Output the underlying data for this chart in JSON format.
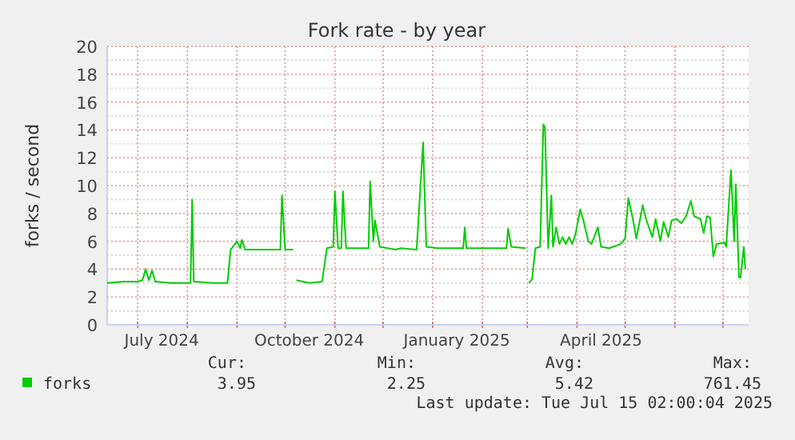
{
  "chart_data": {
    "type": "line",
    "title": "Fork rate - by year",
    "ylabel": "forks / second",
    "xlim": [
      "2024-06-12",
      "2025-07-17"
    ],
    "ylim": [
      0,
      20
    ],
    "yticks": [
      0,
      {
        "value": 1,
        "label": null
      },
      2,
      {
        "value": 3,
        "label": null
      },
      4,
      {
        "value": 5,
        "label": null
      },
      6,
      {
        "value": 7,
        "label": null
      },
      8,
      {
        "value": 9,
        "label": null
      },
      10,
      {
        "value": 11,
        "label": null
      },
      12,
      {
        "value": 13,
        "label": null
      },
      14,
      {
        "value": 15,
        "label": null
      },
      16,
      {
        "value": 17,
        "label": null
      },
      18,
      {
        "value": 19,
        "label": null
      },
      20
    ],
    "xticks": [
      {
        "value": "2024-07-01",
        "label": null
      },
      {
        "value": "2024-07-16",
        "label": "July 2024"
      },
      {
        "value": "2024-08-01",
        "label": null
      },
      {
        "value": "2024-09-01",
        "label": null
      },
      {
        "value": "2024-10-01",
        "label": null
      },
      {
        "value": "2024-10-16",
        "label": "October 2024"
      },
      {
        "value": "2024-11-01",
        "label": null
      },
      {
        "value": "2024-12-01",
        "label": null
      },
      {
        "value": "2025-01-01",
        "label": null
      },
      {
        "value": "2025-01-16",
        "label": "January 2025"
      },
      {
        "value": "2025-02-01",
        "label": null
      },
      {
        "value": "2025-03-01",
        "label": null
      },
      {
        "value": "2025-04-01",
        "label": null
      },
      {
        "value": "2025-04-16",
        "label": "April 2025"
      },
      {
        "value": "2025-05-01",
        "label": null
      },
      {
        "value": "2025-06-01",
        "label": null
      },
      {
        "value": "2025-07-01",
        "label": null
      }
    ],
    "grid": true,
    "legend": "bottom",
    "annotations": [
      "Cur:",
      "Min:",
      "Avg:",
      "Max:",
      "3.95",
      "2.25",
      "5.42",
      "761.45",
      "Last update: Tue Jul 15 02:00:04 2025"
    ],
    "series": [
      {
        "name": "forks",
        "color": "#00cc00",
        "x": [
          "2024-06-12",
          "2024-06-22",
          "2024-07-01",
          "2024-07-04",
          "2024-07-06",
          "2024-07-08",
          "2024-07-10",
          "2024-07-12",
          "2024-07-22",
          "2024-08-03",
          "2024-08-04",
          "2024-08-05",
          "2024-08-17",
          "2024-08-26",
          "2024-08-28",
          "2024-09-01",
          "2024-09-03",
          "2024-09-04",
          "2024-09-06",
          "2024-09-16",
          "2024-09-28",
          "2024-09-29",
          "2024-10-01",
          "2024-10-06",
          "2024-10-07",
          "2024-10-08",
          "2024-10-16",
          "2024-10-24",
          "2024-10-27",
          "2024-10-31",
          "2024-11-01",
          "2024-11-03",
          "2024-11-05",
          "2024-11-06",
          "2024-11-08",
          "2024-11-22",
          "2024-11-23",
          "2024-11-25",
          "2024-11-26",
          "2024-11-29",
          "2024-12-09",
          "2024-12-12",
          "2024-12-22",
          "2024-12-26",
          "2024-12-28",
          "2025-01-04",
          "2025-01-20",
          "2025-01-21",
          "2025-01-22",
          "2025-02-07",
          "2025-02-16",
          "2025-02-17",
          "2025-02-19",
          "2025-02-28",
          "2025-03-01",
          "2025-03-02",
          "2025-03-04",
          "2025-03-06",
          "2025-03-09",
          "2025-03-11",
          "2025-03-12",
          "2025-03-14",
          "2025-03-16",
          "2025-03-17",
          "2025-03-19",
          "2025-03-21",
          "2025-03-23",
          "2025-03-25",
          "2025-03-27",
          "2025-03-29",
          "2025-03-31",
          "2025-04-03",
          "2025-04-05",
          "2025-04-08",
          "2025-04-10",
          "2025-04-14",
          "2025-04-16",
          "2025-04-21",
          "2025-04-28",
          "2025-05-01",
          "2025-05-03",
          "2025-05-06",
          "2025-05-08",
          "2025-05-12",
          "2025-05-14",
          "2025-05-18",
          "2025-05-20",
          "2025-05-23",
          "2025-05-25",
          "2025-05-28",
          "2025-05-30",
          "2025-06-02",
          "2025-06-05",
          "2025-06-08",
          "2025-06-11",
          "2025-06-13",
          "2025-06-17",
          "2025-06-19",
          "2025-06-21",
          "2025-06-23",
          "2025-06-25",
          "2025-06-27",
          "2025-07-02",
          "2025-07-03",
          "2025-07-06",
          "2025-07-08",
          "2025-07-09",
          "2025-07-11",
          "2025-07-12",
          "2025-07-14",
          "2025-07-15"
        ],
        "values": [
          3.0,
          3.1,
          3.1,
          3.2,
          4.0,
          3.2,
          3.9,
          3.1,
          3.0,
          3.0,
          9.0,
          3.1,
          3.0,
          3.0,
          5.4,
          6.0,
          5.5,
          6.1,
          5.4,
          5.4,
          5.4,
          9.3,
          5.4,
          5.4,
          null,
          3.2,
          3.0,
          3.1,
          5.5,
          5.6,
          9.6,
          5.5,
          5.5,
          9.6,
          5.5,
          5.5,
          10.3,
          6.0,
          7.5,
          5.6,
          5.4,
          5.5,
          5.4,
          13.1,
          5.6,
          5.5,
          5.5,
          7.0,
          5.5,
          5.5,
          5.5,
          6.9,
          5.6,
          5.5,
          null,
          3.0,
          3.3,
          5.5,
          5.6,
          14.4,
          14.2,
          5.5,
          9.3,
          5.6,
          7.0,
          5.8,
          6.3,
          5.8,
          6.3,
          5.8,
          6.5,
          8.3,
          7.5,
          6.0,
          5.8,
          7.0,
          5.6,
          5.5,
          5.8,
          6.2,
          9.1,
          7.5,
          6.2,
          8.6,
          7.6,
          6.3,
          7.6,
          6.0,
          7.4,
          6.3,
          7.5,
          7.6,
          7.3,
          7.8,
          8.9,
          7.8,
          7.6,
          6.6,
          7.8,
          7.7,
          4.9,
          5.8,
          5.9,
          5.6,
          11.1,
          6.0,
          10.1,
          3.4,
          3.4,
          5.6,
          4.0
        ]
      }
    ]
  }
}
